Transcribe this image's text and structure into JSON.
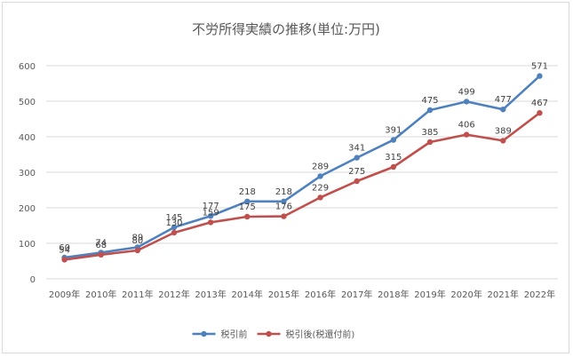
{
  "chart_data": {
    "type": "line",
    "title": "不労所得実績の推移(単位:万円)",
    "categories": [
      "2009年",
      "2010年",
      "2011年",
      "2012年",
      "2013年",
      "2014年",
      "2015年",
      "2016年",
      "2017年",
      "2018年",
      "2019年",
      "2020年",
      "2021年",
      "2022年"
    ],
    "ylim": [
      0,
      600
    ],
    "yticks": [
      "0",
      "100",
      "200",
      "300",
      "400",
      "500",
      "600"
    ],
    "grid": true,
    "legend_position": "bottom",
    "series": [
      {
        "name": "税引前",
        "color": "#4f81bd",
        "values": [
          60,
          74,
          89,
          145,
          177,
          218,
          218,
          289,
          341,
          391,
          475,
          499,
          477,
          571
        ]
      },
      {
        "name": "税引後(税還付前)",
        "color": "#c0504d",
        "values": [
          54,
          68,
          80,
          130,
          159,
          175,
          176,
          229,
          275,
          315,
          385,
          406,
          389,
          467
        ]
      }
    ]
  }
}
